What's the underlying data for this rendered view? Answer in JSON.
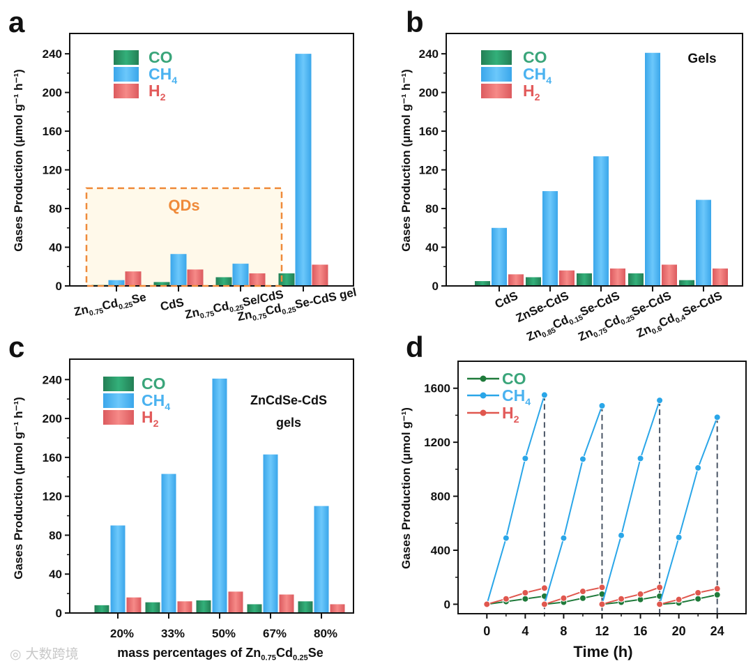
{
  "watermark": "大数跨境",
  "colors": {
    "CO": "#2a9a66",
    "CH4": "#4cb6f2",
    "H2": "#e96a6a",
    "CO_text": "#3aa57a",
    "CH4_text": "#4ab2f0",
    "H2_text": "#e25a5a",
    "qds": "#ef8a3a",
    "qds_fill": "#fff9ea"
  },
  "chart_data": [
    {
      "panel": "a",
      "type": "bar",
      "ylabel": "Gases Production (μmol g⁻¹ h⁻¹)",
      "xlabel": "",
      "ylim": [
        0,
        261
      ],
      "yticks": [
        0,
        40,
        80,
        120,
        160,
        200,
        240
      ],
      "categories": [
        "Zn_{0.75}Cd_{0.25}Se",
        "CdS",
        "Zn_{0.75}Cd_{0.25}Se/CdS",
        "Zn_{0.75}Cd_{0.25}Se-CdS gel"
      ],
      "series": [
        {
          "name": "CO",
          "label": "CO",
          "values": [
            1,
            4,
            9,
            13
          ]
        },
        {
          "name": "CH4",
          "label": "CH_{4}",
          "values": [
            6,
            33,
            23,
            240
          ]
        },
        {
          "name": "H2",
          "label": "H_{2}",
          "values": [
            15,
            17,
            13,
            22
          ]
        }
      ],
      "annotations": [
        {
          "text": "QDs",
          "box_ymax": 101,
          "covers": [
            0,
            2
          ]
        }
      ],
      "legend": "top-left"
    },
    {
      "panel": "b",
      "type": "bar",
      "ylabel": "Gases Production (μmol g⁻¹ h⁻¹)",
      "xlabel": "",
      "ylim": [
        0,
        261
      ],
      "yticks": [
        0,
        40,
        80,
        120,
        160,
        200,
        240
      ],
      "categories": [
        "CdS",
        "ZnSe-CdS",
        "Zn_{0.85}Cd_{0.15}Se-CdS",
        "Zn_{0.75}Cd_{0.25}Se-CdS",
        "Zn_{0.6}Cd_{0.4}Se-CdS"
      ],
      "series": [
        {
          "name": "CO",
          "label": "CO",
          "values": [
            5,
            9,
            13,
            13,
            6
          ]
        },
        {
          "name": "CH4",
          "label": "CH_{4}",
          "values": [
            60,
            98,
            134,
            241,
            89
          ]
        },
        {
          "name": "H2",
          "label": "H_{2}",
          "values": [
            12,
            16,
            18,
            22,
            18
          ]
        }
      ],
      "annotations": [
        {
          "text": "Gels"
        }
      ],
      "legend": "top-left"
    },
    {
      "panel": "c",
      "type": "bar",
      "ylabel": "Gases Production (μmol g⁻¹ h⁻¹)",
      "xlabel": "mass percentages of Zn_{0.75}Cd_{0.25}Se",
      "ylim": [
        0,
        261
      ],
      "yticks": [
        0,
        40,
        80,
        120,
        160,
        200,
        240
      ],
      "categories": [
        "20%",
        "33%",
        "50%",
        "67%",
        "80%"
      ],
      "series": [
        {
          "name": "CO",
          "label": "CO",
          "values": [
            8,
            11,
            13,
            9,
            12
          ]
        },
        {
          "name": "CH4",
          "label": "CH_{4}",
          "values": [
            90,
            143,
            241,
            163,
            110
          ]
        },
        {
          "name": "H2",
          "label": "H_{2}",
          "values": [
            16,
            12,
            22,
            19,
            9
          ]
        }
      ],
      "annotations": [
        {
          "text": "ZnCdSe-CdS"
        },
        {
          "text": "gels"
        }
      ],
      "legend": "top-left"
    },
    {
      "panel": "d",
      "type": "line",
      "ylabel": "Gases Production (μmol g⁻¹)",
      "xlabel": "Time (h)",
      "xlim": [
        -3,
        27
      ],
      "ylim": [
        -70,
        1800
      ],
      "xticks": [
        0,
        4,
        8,
        12,
        16,
        20,
        24
      ],
      "yticks": [
        0,
        400,
        800,
        1200,
        1600
      ],
      "cycle_lines": [
        6,
        12,
        18,
        24
      ],
      "cycles": [
        [
          0,
          2,
          4,
          6
        ],
        [
          6,
          8,
          10,
          12
        ],
        [
          12,
          14,
          16,
          18
        ],
        [
          18,
          20,
          22,
          24
        ]
      ],
      "series": [
        {
          "name": "CO",
          "label": "CO",
          "values": [
            [
              0,
              20,
              40,
              60
            ],
            [
              0,
              15,
              45,
              75
            ],
            [
              0,
              15,
              35,
              60
            ],
            [
              0,
              10,
              40,
              70
            ]
          ]
        },
        {
          "name": "CH4",
          "label": "CH_{4}",
          "values": [
            [
              0,
              490,
              1080,
              1550
            ],
            [
              0,
              490,
              1075,
              1470
            ],
            [
              0,
              510,
              1080,
              1510
            ],
            [
              0,
              495,
              1010,
              1385
            ]
          ]
        },
        {
          "name": "H2",
          "label": "H_{2}",
          "values": [
            [
              0,
              40,
              85,
              120
            ],
            [
              0,
              45,
              95,
              125
            ],
            [
              0,
              40,
              75,
              125
            ],
            [
              0,
              35,
              85,
              115
            ]
          ]
        }
      ],
      "legend": "top-left"
    }
  ]
}
